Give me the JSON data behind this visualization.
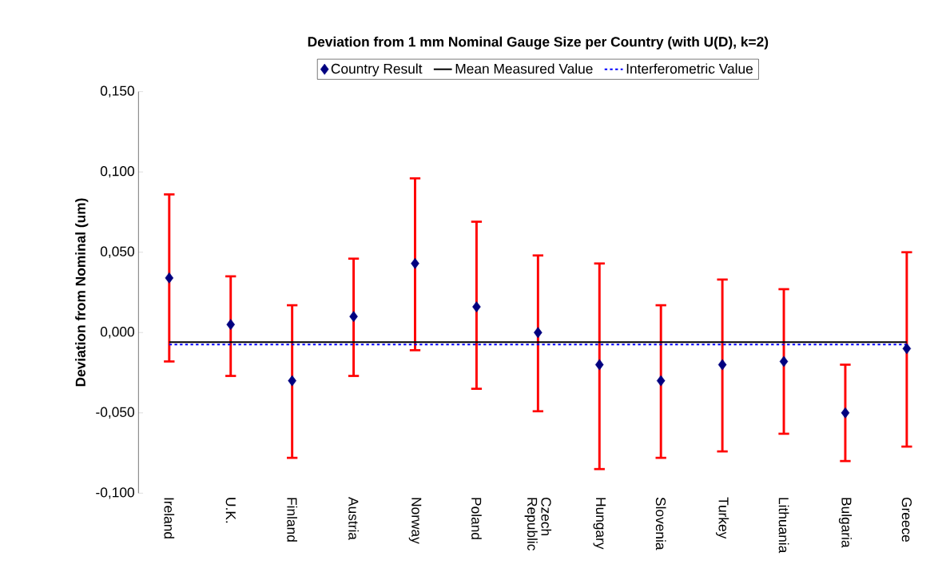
{
  "chart_data": {
    "type": "scatter",
    "title": "Deviation from 1 mm Nominal Gauge Size per Country (with U(D), k=2)",
    "ylabel": "Deviation from Nominal (um)",
    "categories": [
      "Ireland",
      "U.K.",
      "Finland",
      "Austria",
      "Norway",
      "Poland",
      "Czech Republic",
      "Hungary",
      "Slovenia",
      "Turkey",
      "Lithuania",
      "Bulgaria",
      "Greece"
    ],
    "ylim": [
      -0.1,
      0.15
    ],
    "yticks": [
      {
        "value": -0.1,
        "label": "-0,100"
      },
      {
        "value": -0.05,
        "label": "-0,050"
      },
      {
        "value": 0,
        "label": "0,000"
      },
      {
        "value": 0.05,
        "label": "0,050"
      },
      {
        "value": 0.1,
        "label": "0,100"
      },
      {
        "value": 0.15,
        "label": "0,150"
      }
    ],
    "legend": "top",
    "series": [
      {
        "name": "Country Result",
        "marker": "diamond",
        "color": "#000080",
        "values": [
          0.034,
          0.005,
          -0.03,
          0.01,
          0.043,
          0.016,
          0.0,
          -0.02,
          -0.03,
          -0.02,
          -0.018,
          -0.05,
          -0.01
        ],
        "errors": [
          [
            -0.018,
            0.086
          ],
          [
            -0.027,
            0.035
          ],
          [
            -0.078,
            0.017
          ],
          [
            -0.027,
            0.046
          ],
          [
            -0.011,
            0.096
          ],
          [
            -0.035,
            0.069
          ],
          [
            -0.049,
            0.048
          ],
          [
            -0.085,
            0.043
          ],
          [
            -0.078,
            0.017
          ],
          [
            -0.074,
            0.033
          ],
          [
            -0.063,
            0.027
          ],
          [
            -0.08,
            -0.02
          ],
          [
            -0.071,
            0.05
          ]
        ]
      },
      {
        "name": "Mean Measured Value",
        "type": "line",
        "line_style": "solid",
        "color": "#000000",
        "values": [
          -0.006,
          -0.006,
          -0.006,
          -0.006,
          -0.006,
          -0.006,
          -0.006,
          -0.006,
          -0.006,
          -0.006,
          -0.006,
          -0.006,
          -0.006
        ]
      },
      {
        "name": "Interferometric Value",
        "type": "line",
        "line_style": "dotted",
        "color": "#0000ff",
        "values": [
          -0.0075,
          -0.0075,
          -0.0075,
          -0.0075,
          -0.0075,
          -0.0075,
          -0.0075,
          -0.0075,
          -0.0075,
          -0.0075,
          -0.0075,
          -0.0075,
          -0.0075
        ]
      }
    ]
  }
}
